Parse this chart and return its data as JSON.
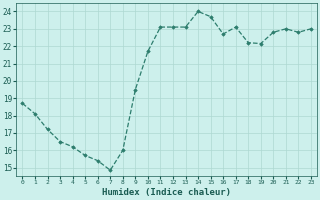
{
  "x": [
    0,
    1,
    2,
    3,
    4,
    5,
    6,
    7,
    8,
    9,
    10,
    11,
    12,
    13,
    14,
    15,
    16,
    17,
    18,
    19,
    20,
    21,
    22,
    23
  ],
  "y": [
    18.7,
    18.1,
    17.2,
    16.5,
    16.2,
    15.7,
    15.4,
    14.85,
    16.0,
    19.5,
    21.7,
    23.1,
    23.1,
    23.1,
    24.0,
    23.7,
    22.7,
    23.1,
    22.2,
    22.15,
    22.8,
    23.0,
    22.8,
    23.0
  ],
  "line_color": "#2d7d6d",
  "bg_color": "#cdf0ec",
  "grid_color": "#aed8d2",
  "xlabel": "Humidex (Indice chaleur)",
  "xlabel_color": "#1a5c52",
  "tick_color": "#1a5c52",
  "ylim": [
    14.5,
    24.5
  ],
  "xlim": [
    -0.5,
    23.5
  ],
  "yticks": [
    15,
    16,
    17,
    18,
    19,
    20,
    21,
    22,
    23,
    24
  ],
  "xticks": [
    0,
    1,
    2,
    3,
    4,
    5,
    6,
    7,
    8,
    9,
    10,
    11,
    12,
    13,
    14,
    15,
    16,
    17,
    18,
    19,
    20,
    21,
    22,
    23
  ],
  "xtick_labels": [
    "0",
    "1",
    "2",
    "3",
    "4",
    "5",
    "6",
    "7",
    "8",
    "9",
    "10",
    "11",
    "12",
    "13",
    "14",
    "15",
    "16",
    "17",
    "18",
    "19",
    "20",
    "21",
    "22",
    "23"
  ]
}
